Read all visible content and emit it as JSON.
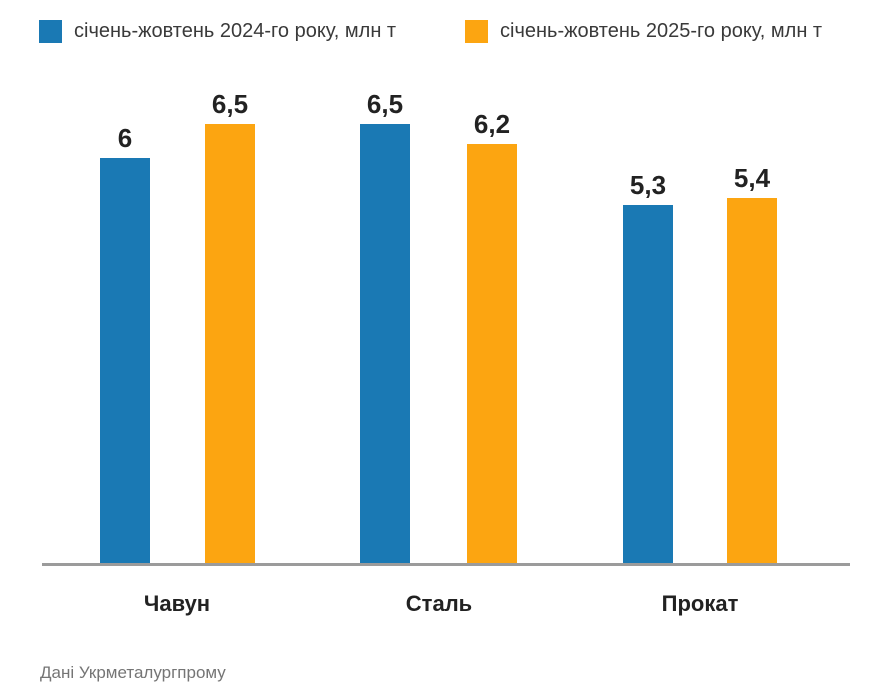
{
  "legend": {
    "items": [
      {
        "label": "січень-жовтень 2024-го року, млн т",
        "color": "#1A79B4"
      },
      {
        "label": "січень-жовтень 2025-го року, млн т",
        "color": "#FCA511"
      }
    ]
  },
  "chart_data": {
    "type": "bar",
    "categories": [
      "Чавун",
      "Сталь",
      "Прокат"
    ],
    "series": [
      {
        "name": "січень-жовтень 2024-го року, млн т",
        "color": "#1A79B4",
        "values": [
          6,
          6.5,
          5.3
        ],
        "value_labels": [
          "6",
          "6,5",
          "5,3"
        ]
      },
      {
        "name": "січень-жовтень 2025-го року, млн т",
        "color": "#FCA511",
        "values": [
          6.5,
          6.2,
          5.4
        ],
        "value_labels": [
          "6,5",
          "6,2",
          "5,4"
        ]
      }
    ],
    "unit": "млн т",
    "ylim": [
      0,
      6.5
    ],
    "grid": false,
    "y_axis_visible": false,
    "legend_position": "top",
    "value_label_decimal_separator": ","
  },
  "source_note": "Дані Укрметалургпрому"
}
